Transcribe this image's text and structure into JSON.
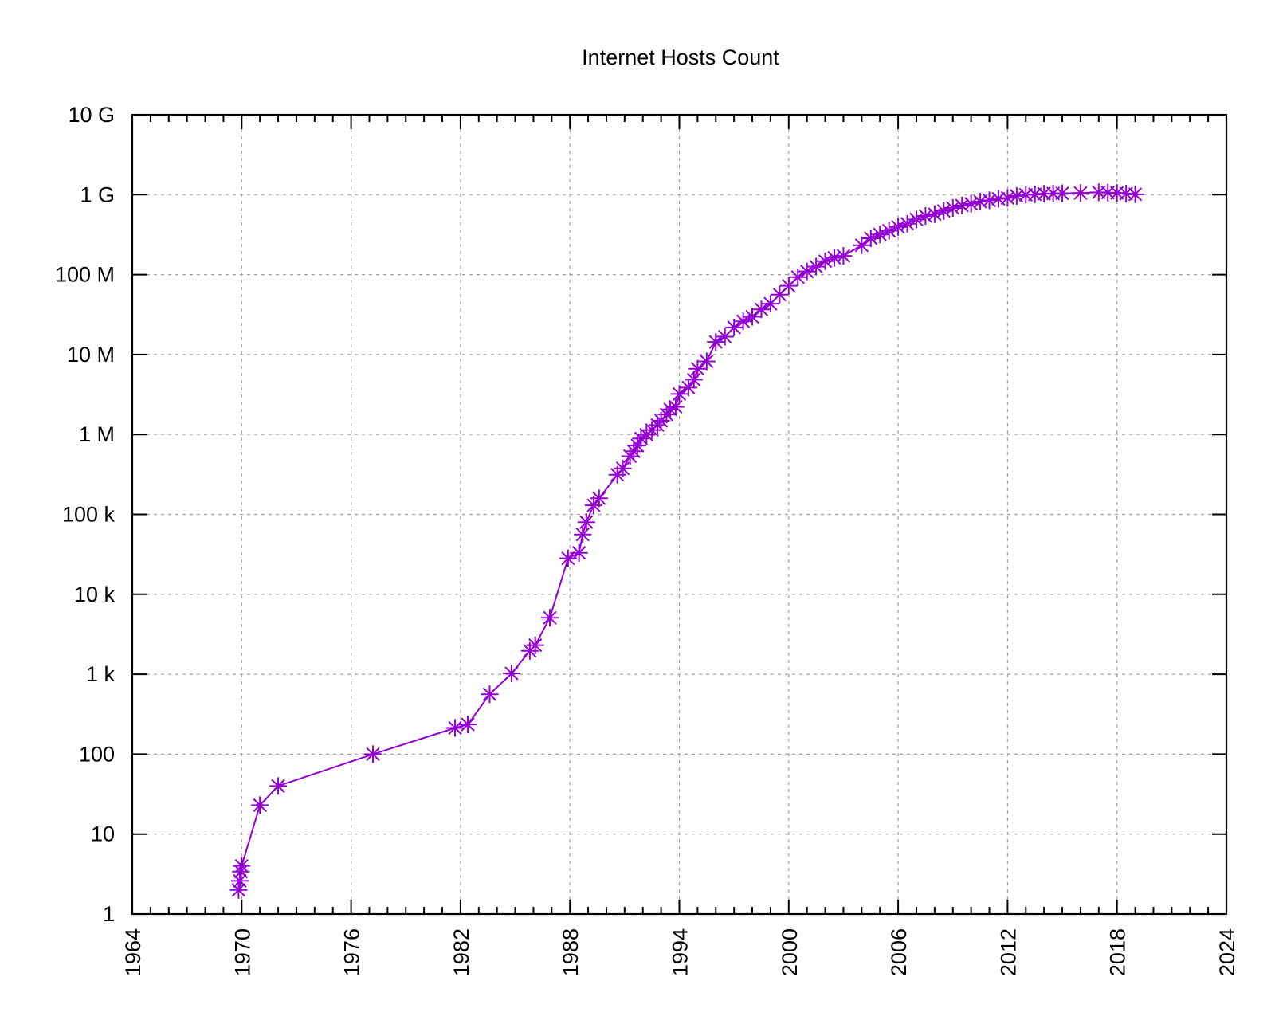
{
  "chart_data": {
    "type": "line",
    "title": "Internet Hosts Count",
    "xlabel": "",
    "ylabel": "",
    "x_scale": "linear",
    "y_scale": "log",
    "xlim": [
      1964,
      2024
    ],
    "ylim": [
      1,
      10000000000
    ],
    "x_ticks": [
      1964,
      1970,
      1976,
      1982,
      1988,
      1994,
      2000,
      2006,
      2012,
      2018,
      2024
    ],
    "x_tick_labels": [
      "1964",
      "1970",
      "1976",
      "1982",
      "1988",
      "1994",
      "2000",
      "2006",
      "2012",
      "2018",
      "2024"
    ],
    "y_ticks": [
      1,
      10,
      100,
      1000,
      10000,
      100000,
      1000000,
      10000000,
      100000000,
      1000000000,
      10000000000
    ],
    "y_tick_labels": [
      "1",
      "10",
      "100",
      "1 k",
      "10 k",
      "100 k",
      "1 M",
      "10 M",
      "100 M",
      "1 G",
      "10 G"
    ],
    "grid": true,
    "legend": "none",
    "series": [
      {
        "color": "#9400d3",
        "marker": "asterisk",
        "x": [
          1969.83,
          1969.9,
          1969.96,
          1970.0,
          1971.0,
          1972.0,
          1977.2,
          1981.7,
          1982.4,
          1983.6,
          1984.8,
          1985.8,
          1986.1,
          1986.9,
          1987.9,
          1988.5,
          1988.7,
          1988.9,
          1989.3,
          1989.6,
          1990.6,
          1990.9,
          1991.3,
          1991.5,
          1991.7,
          1991.9,
          1992.2,
          1992.5,
          1992.8,
          1993.0,
          1993.3,
          1993.5,
          1993.8,
          1994.0,
          1994.5,
          1994.8,
          1995.0,
          1995.5,
          1996.0,
          1996.5,
          1997.0,
          1997.5,
          1998.0,
          1998.5,
          1999.0,
          1999.5,
          2000.0,
          2000.5,
          2001.0,
          2001.5,
          2002.0,
          2002.5,
          2003.0,
          2004.0,
          2004.5,
          2005.0,
          2005.5,
          2006.0,
          2006.5,
          2007.0,
          2007.5,
          2008.0,
          2008.5,
          2009.0,
          2009.5,
          2010.0,
          2010.5,
          2011.0,
          2011.5,
          2012.0,
          2012.5,
          2013.0,
          2013.5,
          2014.0,
          2014.5,
          2015.0,
          2016.0,
          2017.0,
          2017.5,
          2018.0,
          2018.5,
          2019.0
        ],
        "y": [
          2,
          2.6,
          3.4,
          4,
          23,
          40,
          100,
          213,
          235,
          562,
          1024,
          1961,
          2308,
          5089,
          28174,
          33000,
          56000,
          80000,
          130000,
          159000,
          313000,
          376000,
          535000,
          617000,
          727000,
          890000,
          992000,
          1136000,
          1313000,
          1486000,
          1776000,
          2056000,
          2217000,
          3212000,
          3864000,
          4852000,
          6642000,
          8200000,
          14352000,
          16729000,
          21819000,
          26053000,
          29670000,
          36739000,
          43230000,
          56218000,
          72398000,
          93047000,
          109574000,
          125888000,
          147345000,
          162128000,
          171638000,
          233101000,
          285139000,
          317646000,
          353284000,
          394991000,
          433193000,
          489774000,
          541677000,
          570937000,
          625226000,
          681064000,
          732740000,
          768913000,
          818374000,
          849869000,
          888239000,
          908585000,
          963518000,
          996230000,
          1010000000,
          1028000000,
          1033000000,
          1040000000,
          1048000000,
          1070000000,
          1060000000,
          1050000000,
          1030000000,
          1010000000
        ]
      }
    ]
  }
}
